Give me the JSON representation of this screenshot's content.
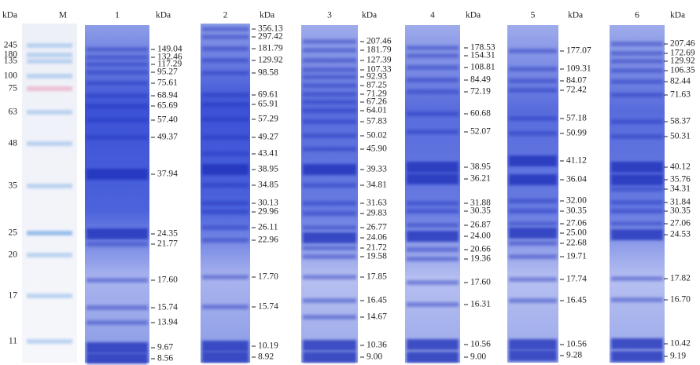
{
  "marker": {
    "unit": "kDa",
    "label": "M",
    "bands": [
      245,
      180,
      135,
      100,
      75,
      63,
      48,
      35,
      25,
      20,
      17,
      11
    ]
  },
  "lanes": [
    {
      "label": "1",
      "unit": "kDa",
      "bands": [
        "149.04",
        "132.46",
        "117.29",
        "95.27",
        "75.61",
        "68.94",
        "65.69",
        "57.40",
        "49.37",
        "37.94",
        "24.35",
        "21.77",
        "17.60",
        "15.74",
        "13.94",
        "9.67",
        "8.56"
      ]
    },
    {
      "label": "2",
      "unit": "kDa",
      "bands": [
        "356.13",
        "297.42",
        "181.79",
        "129.92",
        "98.58",
        "69.61",
        "65.91",
        "57.29",
        "49.27",
        "43.41",
        "38.95",
        "34.85",
        "30.13",
        "29.96",
        "26.11",
        "22.96",
        "17.70",
        "15.74",
        "10.19",
        "8.92"
      ]
    },
    {
      "label": "3",
      "unit": "kDa",
      "bands": [
        "207.46",
        "181.79",
        "127.39",
        "107.33",
        "92.93",
        "87.25",
        "71.29",
        "67.26",
        "64.01",
        "57.83",
        "50.02",
        "45.90",
        "39.33",
        "34.81",
        "31.63",
        "29.83",
        "26.77",
        "24.06",
        "21.72",
        "19.58",
        "17.85",
        "16.45",
        "14.67",
        "10.36",
        "9.00"
      ]
    },
    {
      "label": "4",
      "unit": "kDa",
      "bands": [
        "178.53",
        "154.31",
        "108.81",
        "84.49",
        "72.19",
        "60.68",
        "52.07",
        "38.95",
        "36.21",
        "31.88",
        "30.35",
        "26.87",
        "24.00",
        "20.66",
        "19.36",
        "17.60",
        "16.31",
        "10.56",
        "9.00"
      ]
    },
    {
      "label": "5",
      "unit": "kDa",
      "bands": [
        "177.07",
        "109.31",
        "84.07",
        "72.42",
        "57.18",
        "50.99",
        "41.12",
        "36.04",
        "32.00",
        "30.35",
        "27.06",
        "25.00",
        "22.68",
        "19.71",
        "17.74",
        "16.45",
        "10.56",
        "9.28"
      ]
    },
    {
      "label": "6",
      "unit": "kDa",
      "bands": [
        "207.46",
        "172.69",
        "129.92",
        "106.35",
        "82.44",
        "71.63",
        "58.37",
        "50.31",
        "40.12",
        "35.76",
        "34.31",
        "31.84",
        "30.35",
        "27.06",
        "24.53",
        "17.82",
        "16.70",
        "10.42",
        "9.19"
      ]
    }
  ]
}
